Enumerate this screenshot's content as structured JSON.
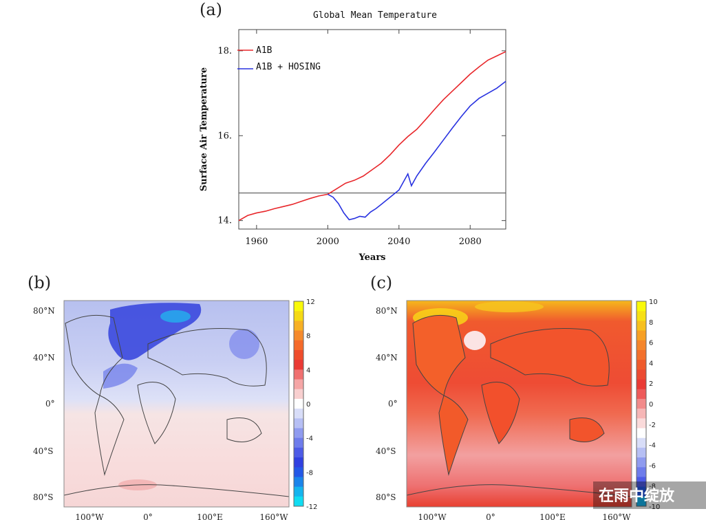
{
  "panel_a": {
    "label": "(a)",
    "chart_data": {
      "type": "line",
      "title": "Global Mean Temperature",
      "xlabel": "Years",
      "ylabel": "Surface Air Temperature",
      "xlim": [
        1950,
        2100
      ],
      "ylim": [
        13.8,
        18.5
      ],
      "x_ticks": [
        1960,
        2000,
        2040,
        2080
      ],
      "x_tick_labels": [
        "1960",
        "2000",
        "2040",
        "2080"
      ],
      "y_ticks": [
        14,
        16,
        18
      ],
      "y_tick_labels": [
        "14.",
        "16.",
        "18."
      ],
      "reference_line": 14.65,
      "legend_position": "top-left",
      "series": [
        {
          "name": "A1B",
          "color": "#e8262a",
          "x": [
            1950,
            1955,
            1960,
            1965,
            1970,
            1975,
            1980,
            1985,
            1990,
            1995,
            2000,
            2005,
            2010,
            2015,
            2020,
            2025,
            2030,
            2035,
            2040,
            2045,
            2050,
            2055,
            2060,
            2065,
            2070,
            2075,
            2080,
            2085,
            2090,
            2095,
            2100
          ],
          "y": [
            14.0,
            14.12,
            14.18,
            14.22,
            14.28,
            14.33,
            14.38,
            14.45,
            14.52,
            14.58,
            14.62,
            14.75,
            14.88,
            14.95,
            15.05,
            15.2,
            15.35,
            15.55,
            15.78,
            15.98,
            16.15,
            16.38,
            16.62,
            16.85,
            17.05,
            17.25,
            17.45,
            17.62,
            17.78,
            17.88,
            17.98
          ]
        },
        {
          "name": "A1B + HOSING",
          "color": "#2832e0",
          "x": [
            2000,
            2003,
            2006,
            2009,
            2012,
            2015,
            2018,
            2021,
            2024,
            2027,
            2030,
            2035,
            2040,
            2045,
            2047,
            2050,
            2055,
            2060,
            2065,
            2070,
            2075,
            2080,
            2085,
            2090,
            2095,
            2100
          ],
          "y": [
            14.62,
            14.55,
            14.4,
            14.18,
            14.02,
            14.05,
            14.1,
            14.08,
            14.2,
            14.28,
            14.38,
            14.55,
            14.72,
            15.1,
            14.82,
            15.05,
            15.35,
            15.62,
            15.9,
            16.18,
            16.45,
            16.7,
            16.88,
            17.0,
            17.12,
            17.28
          ]
        }
      ]
    }
  },
  "panel_b": {
    "label": "(b)",
    "lat_labels": [
      "80°N",
      "40°N",
      "0°",
      "40°S",
      "80°S"
    ],
    "lon_labels": [
      "100°W",
      "0°",
      "100°E",
      "160°W"
    ],
    "colorbar_ticks": [
      "12",
      "8",
      "4",
      "0",
      "-4",
      "-8",
      "-12"
    ],
    "colorbar_colors": [
      "#f9f90a",
      "#f5d914",
      "#f7b024",
      "#f58a2c",
      "#f56a2a",
      "#ef4c2c",
      "#ea3a35",
      "#f07070",
      "#f5a6a6",
      "#f8cfcf",
      "#ffffff",
      "#d8ddf8",
      "#b6bff4",
      "#8f9bef",
      "#6e7ceb",
      "#4d5be6",
      "#3040e0",
      "#2458e6",
      "#1b84ea",
      "#15b4ee",
      "#10dcf2"
    ]
  },
  "panel_c": {
    "label": "(c)",
    "lat_labels": [
      "80°N",
      "40°N",
      "0°",
      "40°S",
      "80°S"
    ],
    "lon_labels": [
      "100°W",
      "0°",
      "100°E",
      "160°W"
    ],
    "colorbar_ticks": [
      "10",
      "8",
      "6",
      "4",
      "2",
      "0",
      "-2",
      "-4",
      "-6",
      "-8",
      "-10"
    ],
    "colorbar_colors": [
      "#f9f90a",
      "#f7e014",
      "#f7c01e",
      "#f7a024",
      "#f5862c",
      "#f3702c",
      "#ef5a2c",
      "#ec4a32",
      "#ea3a35",
      "#ee5a5a",
      "#f28a8a",
      "#f6b6b6",
      "#fadada",
      "#ffffff",
      "#d8ddf8",
      "#b6bff4",
      "#8f9bef",
      "#6e7ceb",
      "#4d5be6",
      "#2458e6",
      "#15b4ee"
    ]
  },
  "watermark": "在雨中绽放"
}
